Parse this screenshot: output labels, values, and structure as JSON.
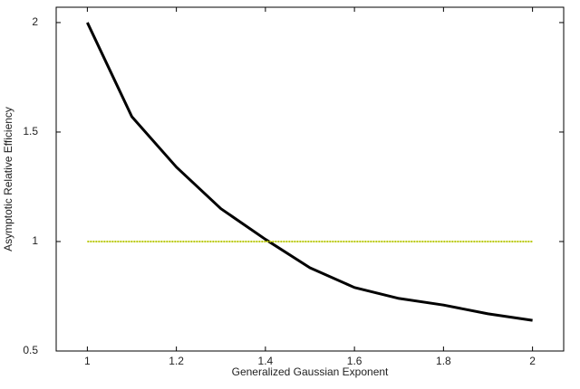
{
  "chart_data": {
    "type": "line",
    "xlabel": "Generalized Gaussian Exponent",
    "ylabel": "Asymptotic Relative Efficiency",
    "x": [
      1,
      1.1,
      1.2,
      1.3,
      1.4,
      1.5,
      1.6,
      1.7,
      1.8,
      1.9,
      2
    ],
    "series": [
      {
        "color": "#000000",
        "values": [
          2,
          1.57,
          1.34,
          1.15,
          1.01,
          0.88,
          0.79,
          0.74,
          0.71,
          0.67,
          0.64
        ]
      },
      {
        "color": "#b8c800",
        "values": [
          1,
          1,
          1,
          1,
          1,
          1,
          1,
          1,
          1,
          1,
          1
        ],
        "dashed": true
      }
    ],
    "xlim": [
      0.93,
      2.07
    ],
    "ylim": [
      0.5,
      2.07
    ],
    "xticks": [
      1,
      1.2,
      1.4,
      1.6,
      1.8,
      2
    ],
    "yticks": [
      0.5,
      1,
      1.5,
      2
    ],
    "grid": false
  }
}
